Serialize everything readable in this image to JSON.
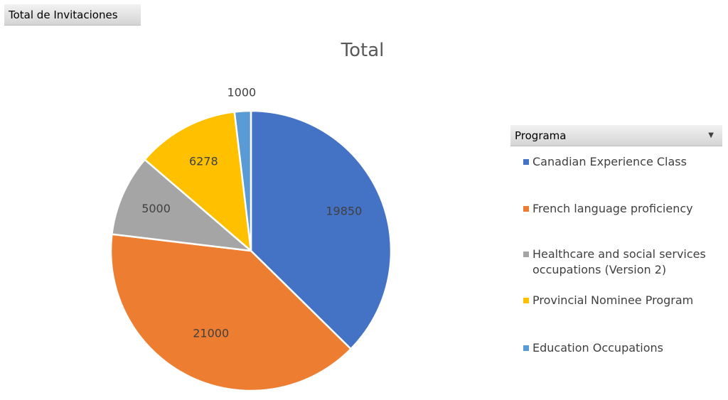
{
  "field_button": {
    "label": "Total de Invitaciones"
  },
  "legend": {
    "header": "Programa",
    "dropdown_icon": "chevron-down-icon"
  },
  "chart_data": {
    "type": "pie",
    "title": "Total",
    "start_angle_deg": 0,
    "direction": "clockwise",
    "slices": [
      {
        "name": "Canadian Experience Class",
        "value": 19850,
        "color": "#4472C4"
      },
      {
        "name": "French language proficiency",
        "value": 21000,
        "color": "#ED7D31"
      },
      {
        "name": "Healthcare and social services occupations (Version 2)",
        "value": 5000,
        "color": "#A5A5A5"
      },
      {
        "name": "Provincial Nominee Program",
        "value": 6278,
        "color": "#FFC000"
      },
      {
        "name": "Education Occupations",
        "value": 1000,
        "color": "#5B9BD5"
      }
    ],
    "data_labels": true,
    "legend_position": "right"
  }
}
